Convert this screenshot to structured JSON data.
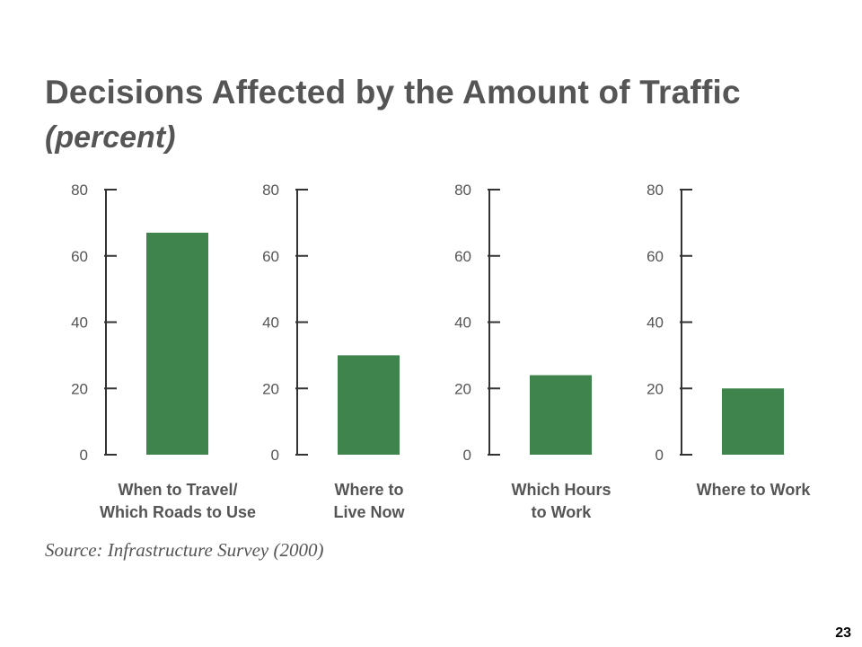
{
  "slide": {
    "title": "Decisions Affected by the Amount of Traffic",
    "subtitle": "(percent)",
    "source": "Source: Infrastructure Survey (2000)",
    "page_number": "23"
  },
  "colors": {
    "bar": "#3f844c",
    "axis": "#333333",
    "text": "#555555"
  },
  "chart_data": [
    {
      "type": "bar",
      "categories": [
        "When to Travel/ Which Roads to Use"
      ],
      "category_lines": [
        "When to Travel/",
        "Which Roads to Use"
      ],
      "values": [
        67
      ],
      "ylim": [
        0,
        80
      ],
      "yticks": [
        0,
        20,
        40,
        60,
        80
      ]
    },
    {
      "type": "bar",
      "categories": [
        "Where to Live Now"
      ],
      "category_lines": [
        "Where to",
        "Live Now"
      ],
      "values": [
        30
      ],
      "ylim": [
        0,
        80
      ],
      "yticks": [
        0,
        20,
        40,
        60,
        80
      ]
    },
    {
      "type": "bar",
      "categories": [
        "Which Hours to Work"
      ],
      "category_lines": [
        "Which Hours",
        "to Work"
      ],
      "values": [
        24
      ],
      "ylim": [
        0,
        80
      ],
      "yticks": [
        0,
        20,
        40,
        60,
        80
      ]
    },
    {
      "type": "bar",
      "categories": [
        "Where to Work"
      ],
      "category_lines": [
        "Where to Work"
      ],
      "values": [
        20
      ],
      "ylim": [
        0,
        80
      ],
      "yticks": [
        0,
        20,
        40,
        60,
        80
      ]
    }
  ]
}
